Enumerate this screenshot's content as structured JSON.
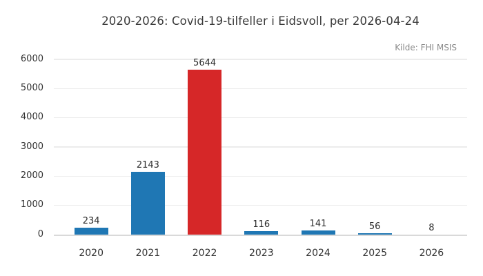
{
  "chart_data": {
    "type": "bar",
    "title": "2020-2026: Covid-19-tilfeller i Eidsvoll, per 2026-04-24",
    "source_note": "Kilde: FHI MSIS",
    "categories": [
      "2020",
      "2021",
      "2022",
      "2023",
      "2024",
      "2025",
      "2026"
    ],
    "values": [
      234,
      2143,
      5644,
      116,
      141,
      56,
      8
    ],
    "value_labels": [
      "234",
      "2143",
      "5644",
      "116",
      "141",
      "56",
      "8"
    ],
    "bar_colors": [
      "#1f77b4",
      "#1f77b4",
      "#d62728",
      "#1f77b4",
      "#1f77b4",
      "#1f77b4",
      "#1f77b4"
    ],
    "highlighted_category": "2022",
    "xlabel": "",
    "ylabel": "",
    "ylim": [
      0,
      6000
    ],
    "yticks": [
      0,
      1000,
      2000,
      3000,
      4000,
      5000,
      6000
    ],
    "grid": true,
    "legend": false,
    "colors": {
      "bar_blue": "#1f77b4",
      "bar_red": "#d62728",
      "gridline": "#ececec",
      "zero_line": "#d9d9d9",
      "title_text": "#3a3a3a",
      "tick_text": "#333333",
      "source_text": "#8a8a8a",
      "background": "#ffffff"
    }
  }
}
